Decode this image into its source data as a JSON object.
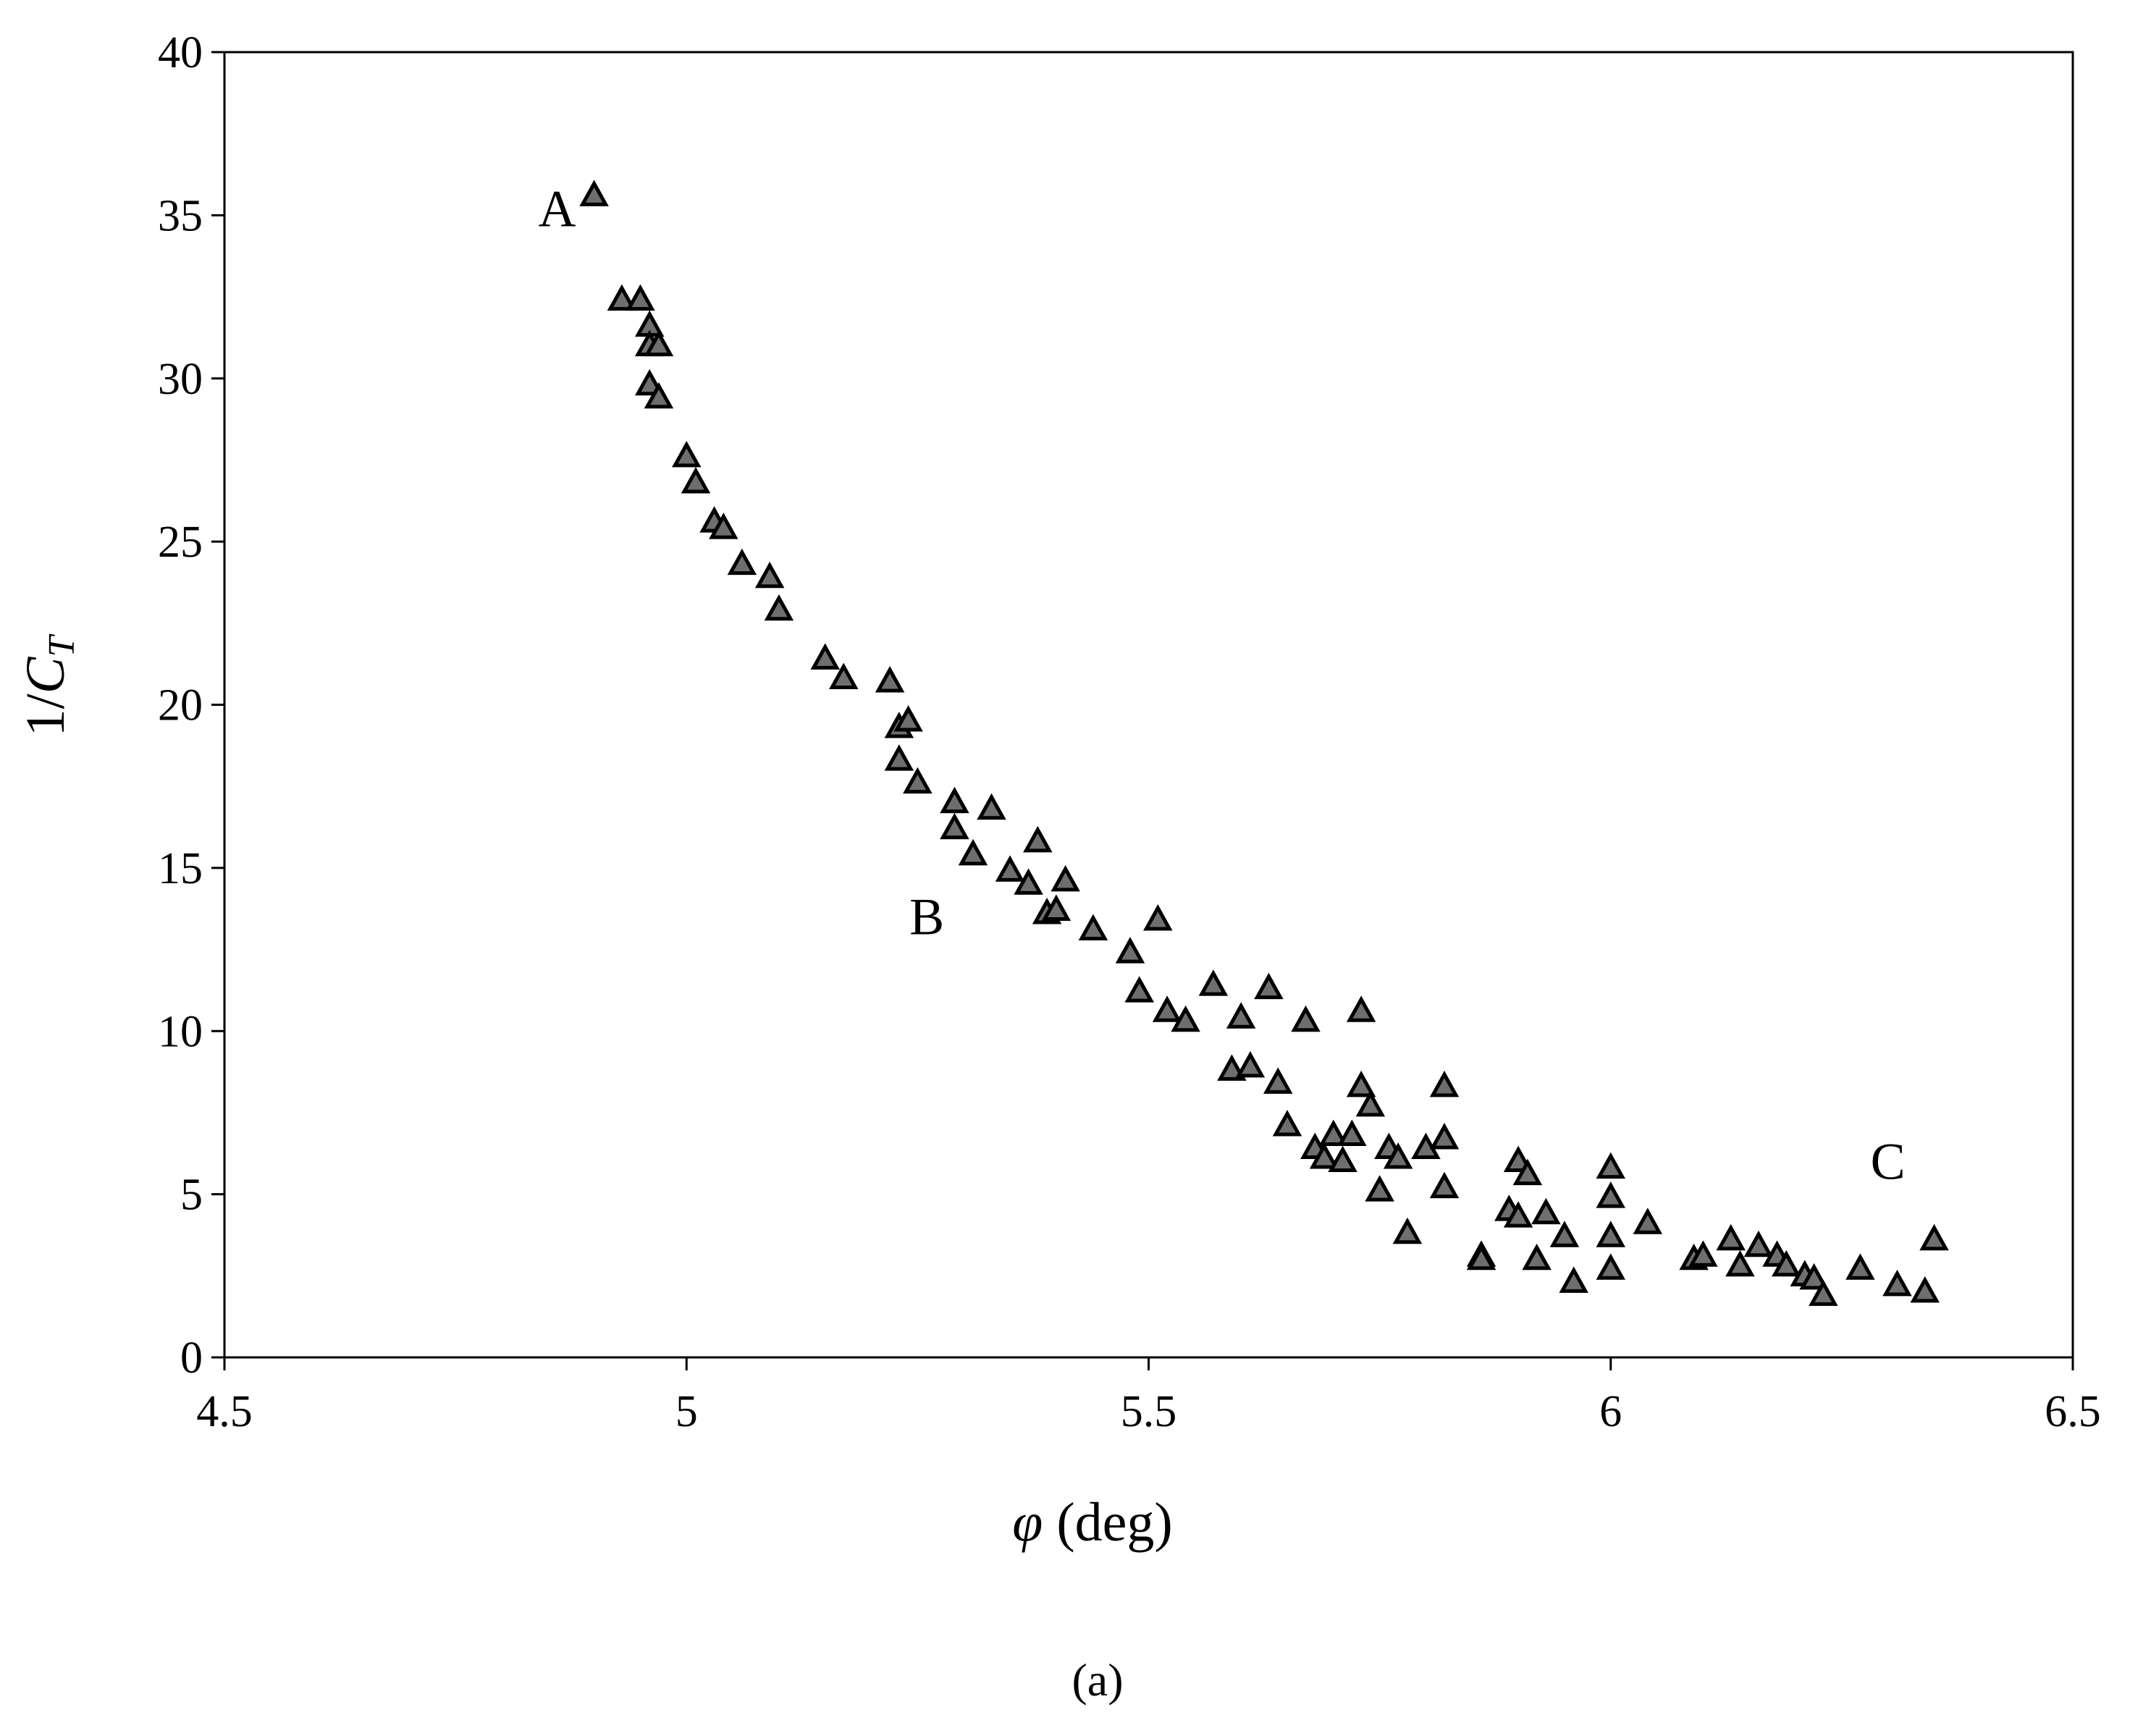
{
  "chart_data": {
    "type": "scatter",
    "title": "",
    "xlabel": "φ (deg)",
    "ylabel": "1/CT",
    "xlabel_parts": {
      "symbol": "φ",
      "rest": " (deg)"
    },
    "ylabel_parts": {
      "prefix": "1/",
      "var": "C",
      "sub": "T"
    },
    "xlim": [
      4.5,
      6.5
    ],
    "ylim": [
      0,
      40
    ],
    "xticks": [
      4.5,
      5,
      5.5,
      6,
      6.5
    ],
    "xtick_labels": [
      "4.5",
      "5",
      "5.5",
      "6",
      "6.5"
    ],
    "yticks": [
      0,
      5,
      10,
      15,
      20,
      25,
      30,
      35,
      40
    ],
    "ytick_labels": [
      "0",
      "5",
      "10",
      "15",
      "20",
      "25",
      "30",
      "35",
      "40"
    ],
    "grid": false,
    "legend": "none",
    "marker": "triangle",
    "marker_fill": "#6e6e6e",
    "marker_edge": "#000000",
    "axis_color": "#000000",
    "caption": "(a)",
    "annotations": [
      {
        "text": "A",
        "x": 4.86,
        "y": 35.2
      },
      {
        "text": "B",
        "x": 5.26,
        "y": 13.5
      },
      {
        "text": "C",
        "x": 6.3,
        "y": 6.0
      }
    ],
    "x": [
      4.9,
      4.93,
      4.95,
      4.96,
      4.96,
      4.97,
      4.96,
      4.97,
      5.0,
      5.01,
      5.03,
      5.04,
      5.06,
      5.09,
      5.1,
      5.15,
      5.17,
      5.22,
      5.23,
      5.24,
      5.23,
      5.25,
      5.29,
      5.29,
      5.33,
      5.31,
      5.35,
      5.37,
      5.38,
      5.39,
      5.4,
      5.41,
      5.44,
      5.48,
      5.51,
      5.49,
      5.52,
      5.54,
      5.57,
      5.6,
      5.63,
      5.67,
      5.73,
      5.59,
      5.61,
      5.64,
      5.65,
      5.68,
      5.69,
      5.7,
      5.71,
      5.72,
      5.73,
      5.74,
      5.75,
      5.76,
      5.77,
      5.78,
      5.8,
      5.82,
      5.82,
      5.82,
      5.86,
      5.86,
      5.89,
      5.9,
      5.9,
      5.92,
      5.91,
      5.93,
      5.95,
      5.96,
      6.0,
      6.0,
      6.0,
      6.0,
      6.04,
      6.09,
      6.1,
      6.13,
      6.14,
      6.16,
      6.18,
      6.19,
      6.21,
      6.22,
      6.23,
      6.27,
      6.31,
      6.34,
      6.35
    ],
    "y": [
      35.6,
      32.4,
      32.4,
      31.6,
      31.0,
      31.0,
      29.8,
      29.4,
      27.6,
      26.8,
      25.6,
      25.4,
      24.3,
      23.9,
      22.9,
      21.4,
      20.8,
      20.7,
      19.3,
      19.5,
      18.3,
      17.6,
      17.0,
      16.2,
      16.8,
      15.4,
      14.9,
      14.5,
      15.8,
      13.6,
      13.7,
      14.6,
      13.1,
      12.4,
      13.4,
      11.2,
      10.6,
      10.3,
      11.4,
      10.4,
      11.3,
      10.3,
      10.6,
      8.8,
      8.9,
      8.4,
      7.1,
      6.4,
      6.1,
      6.8,
      6.0,
      6.8,
      8.3,
      7.7,
      5.1,
      6.4,
      6.1,
      3.8,
      6.4,
      6.7,
      8.3,
      5.2,
      3.1,
      3.0,
      4.5,
      6.0,
      4.3,
      3.0,
      5.6,
      4.4,
      3.7,
      2.3,
      2.7,
      5.8,
      4.9,
      3.7,
      4.1,
      3.0,
      3.1,
      3.6,
      2.8,
      3.4,
      3.1,
      2.8,
      2.5,
      2.4,
      1.9,
      2.7,
      2.2,
      2.0,
      3.6
    ]
  }
}
